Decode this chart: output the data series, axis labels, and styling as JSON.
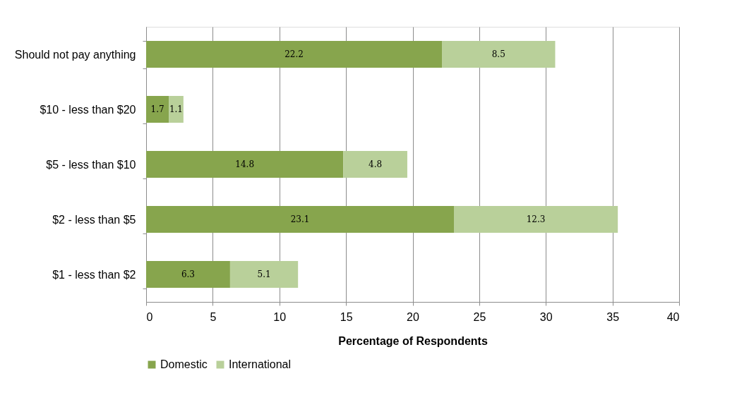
{
  "chart_data": {
    "type": "bar",
    "orientation": "horizontal",
    "stacked": true,
    "categories": [
      "Should not pay anything",
      "$10 - less than $20",
      "$5 - less than $10",
      "$2 - less than $5",
      "$1 - less than $2"
    ],
    "series": [
      {
        "name": "Domestic",
        "color": "#87a54d",
        "values": [
          22.2,
          1.7,
          14.8,
          23.1,
          6.3
        ]
      },
      {
        "name": "International",
        "color": "#b9d09a",
        "values": [
          8.5,
          1.1,
          4.8,
          12.3,
          5.1
        ]
      }
    ],
    "xlim": [
      0,
      40
    ],
    "xticks": [
      0,
      5,
      10,
      15,
      20,
      25,
      30,
      35,
      40
    ],
    "xlabel": "Percentage of Respondents",
    "grid": "x",
    "legend": "bottom",
    "data_labels": true
  }
}
